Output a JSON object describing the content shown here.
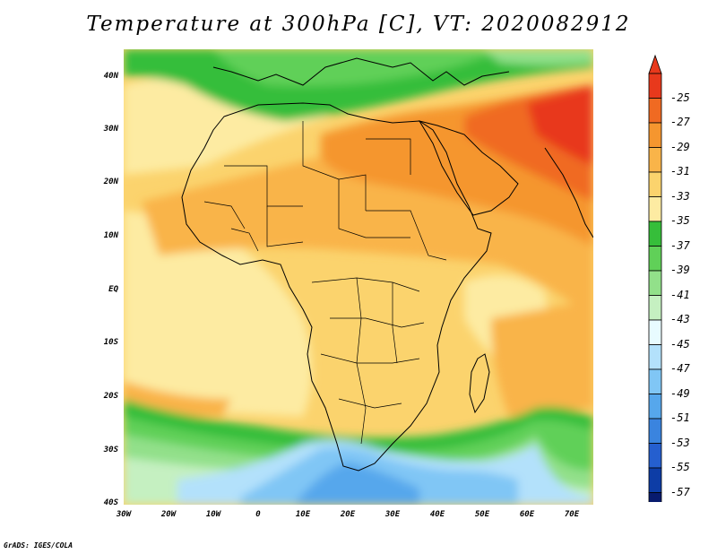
{
  "title": "Temperature at 300hPa [C], VT: 2020082912",
  "credit": "GrADS: IGES/COLA",
  "map": {
    "region": "Africa",
    "projection": "latlon",
    "lon_range": [
      -30,
      75
    ],
    "lat_range": [
      -40,
      45
    ],
    "lat_ticks": [
      "40N",
      "30N",
      "20N",
      "10N",
      "EQ",
      "10S",
      "20S",
      "30S",
      "40S"
    ],
    "lon_ticks": [
      "30W",
      "20W",
      "10W",
      "0",
      "10E",
      "20E",
      "30E",
      "40E",
      "50E",
      "60E",
      "70E"
    ],
    "features": [
      "country-borders",
      "coastlines"
    ]
  },
  "colorbar": {
    "levels": [
      "-25",
      "-27",
      "-29",
      "-31",
      "-33",
      "-35",
      "-37",
      "-39",
      "-41",
      "-43",
      "-45",
      "-47",
      "-49",
      "-51",
      "-53",
      "-55",
      "-57"
    ],
    "colors": [
      "#e8391c",
      "#f06a22",
      "#f5962f",
      "#f9b449",
      "#fbd36d",
      "#fdeba2",
      "#36be3a",
      "#60d058",
      "#92e08a",
      "#c5f0c1",
      "#e8fbff",
      "#b3e1fb",
      "#80c6f5",
      "#56a7ec",
      "#3a84df",
      "#255fcf",
      "#0d3da6",
      "#081b6e"
    ],
    "top_color": "#e8391c",
    "bottom_color": "#d7d3ff"
  }
}
